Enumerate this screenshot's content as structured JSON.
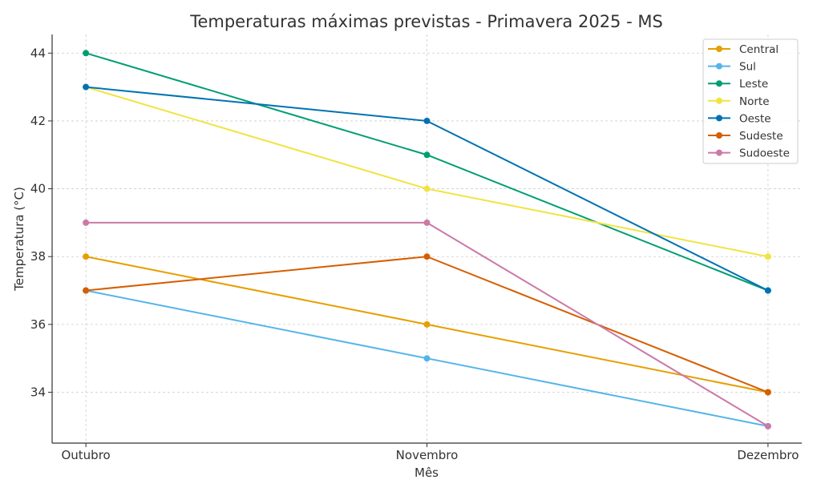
{
  "chart_data": {
    "type": "line",
    "title": "Temperaturas máximas previstas - Primavera 2025 - MS",
    "xlabel": "Mês",
    "ylabel": "Temperatura (°C)",
    "categories": [
      "Outubro",
      "Novembro",
      "Dezembro"
    ],
    "yticks": [
      34,
      36,
      38,
      40,
      42,
      44
    ],
    "ylim": [
      32.5,
      44.55
    ],
    "grid": true,
    "legend_position": "top-right",
    "series": [
      {
        "name": "Central",
        "color": "#E69F00",
        "values": [
          38,
          36,
          34
        ]
      },
      {
        "name": "Sul",
        "color": "#56B4E9",
        "values": [
          37,
          35,
          33
        ]
      },
      {
        "name": "Leste",
        "color": "#009E73",
        "values": [
          44,
          41,
          37
        ]
      },
      {
        "name": "Norte",
        "color": "#F0E442",
        "values": [
          43,
          40,
          38
        ]
      },
      {
        "name": "Oeste",
        "color": "#0072B2",
        "values": [
          43,
          42,
          37
        ]
      },
      {
        "name": "Sudeste",
        "color": "#D55E00",
        "values": [
          37,
          38,
          34
        ]
      },
      {
        "name": "Sudoeste",
        "color": "#CC79A7",
        "values": [
          39,
          39,
          33
        ]
      }
    ]
  }
}
